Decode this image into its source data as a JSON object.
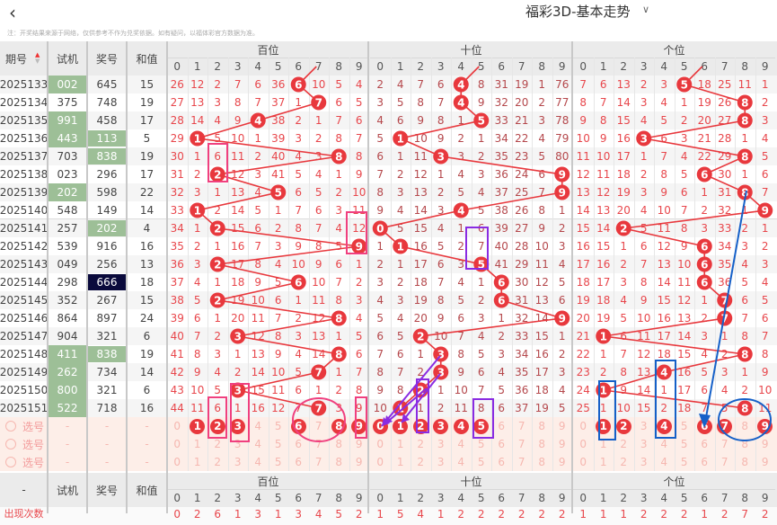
{
  "header": {
    "back_icon": "chevron-left-icon",
    "title": "福彩3D-基本走势",
    "title_chevron": "chevron-down-icon",
    "note": "注：开奖结果来源于网络，仅供参考不作为兑奖依据。如有疑问，以福体彩官方数据为准。"
  },
  "columns": {
    "period": "期号",
    "sort_icon": "sort-arrows-icon",
    "trial": "试机",
    "winning": "奖号",
    "sum": "和值",
    "positions": [
      "百位",
      "十位",
      "个位"
    ],
    "digits": [
      "0",
      "1",
      "2",
      "3",
      "4",
      "5",
      "6",
      "7",
      "8",
      "9"
    ]
  },
  "rows": [
    {
      "period": "2025133",
      "trial": "002",
      "trial_hl": true,
      "winning": "645",
      "win_hl": "",
      "sum": "15",
      "hundreds": [
        26,
        12,
        2,
        7,
        6,
        36,
        0,
        10,
        5,
        4
      ],
      "tens": [
        2,
        4,
        7,
        6,
        0,
        8,
        31,
        19,
        1,
        76
      ],
      "units": [
        7,
        6,
        13,
        2,
        3,
        0,
        18,
        25,
        11,
        1
      ]
    },
    {
      "period": "2025134",
      "trial": "375",
      "trial_hl": false,
      "winning": "748",
      "win_hl": "",
      "sum": "19",
      "hundreds": [
        27,
        13,
        3,
        8,
        7,
        37,
        1,
        0,
        6,
        5
      ],
      "tens": [
        3,
        5,
        8,
        7,
        0,
        9,
        32,
        20,
        2,
        77
      ],
      "units": [
        8,
        7,
        14,
        3,
        4,
        1,
        19,
        26,
        0,
        2
      ]
    },
    {
      "period": "2025135",
      "trial": "991",
      "trial_hl": true,
      "winning": "458",
      "win_hl": "",
      "sum": "17",
      "hundreds": [
        28,
        14,
        4,
        9,
        0,
        38,
        2,
        1,
        7,
        6
      ],
      "tens": [
        4,
        6,
        9,
        8,
        1,
        0,
        33,
        21,
        3,
        78
      ],
      "units": [
        9,
        8,
        15,
        4,
        5,
        2,
        20,
        27,
        0,
        3
      ]
    },
    {
      "period": "2025136",
      "trial": "443",
      "trial_hl": true,
      "winning": "113",
      "win_hl": "green",
      "sum": "5",
      "hundreds": [
        29,
        0,
        5,
        10,
        1,
        39,
        3,
        2,
        8,
        7
      ],
      "tens": [
        5,
        0,
        10,
        9,
        2,
        1,
        34,
        22,
        4,
        79
      ],
      "units": [
        10,
        9,
        16,
        0,
        6,
        3,
        21,
        28,
        1,
        4
      ]
    },
    {
      "period": "2025137",
      "trial": "703",
      "trial_hl": false,
      "winning": "838",
      "win_hl": "green",
      "sum": "19",
      "hundreds": [
        30,
        1,
        6,
        11,
        2,
        40,
        4,
        3,
        0,
        8
      ],
      "tens": [
        6,
        1,
        11,
        0,
        3,
        2,
        35,
        23,
        5,
        80
      ],
      "units": [
        11,
        10,
        17,
        1,
        7,
        4,
        22,
        29,
        0,
        5
      ]
    },
    {
      "period": "2025138",
      "trial": "023",
      "trial_hl": false,
      "winning": "296",
      "win_hl": "",
      "sum": "17",
      "hundreds": [
        31,
        2,
        0,
        12,
        3,
        41,
        5,
        4,
        1,
        9
      ],
      "tens": [
        7,
        2,
        12,
        1,
        4,
        3,
        36,
        24,
        6,
        0
      ],
      "units": [
        12,
        11,
        18,
        2,
        8,
        5,
        0,
        30,
        1,
        6
      ]
    },
    {
      "period": "2025139",
      "trial": "202",
      "trial_hl": true,
      "winning": "598",
      "win_hl": "",
      "sum": "22",
      "hundreds": [
        32,
        3,
        1,
        13,
        4,
        0,
        6,
        5,
        2,
        10
      ],
      "tens": [
        8,
        3,
        13,
        2,
        5,
        4,
        37,
        25,
        7,
        0
      ],
      "units": [
        13,
        12,
        19,
        3,
        9,
        6,
        1,
        31,
        0,
        7
      ]
    },
    {
      "period": "2025140",
      "trial": "548",
      "trial_hl": false,
      "winning": "149",
      "win_hl": "",
      "sum": "14",
      "hundreds": [
        33,
        0,
        2,
        14,
        5,
        1,
        7,
        6,
        3,
        11
      ],
      "tens": [
        9,
        4,
        14,
        3,
        0,
        5,
        38,
        26,
        8,
        1
      ],
      "units": [
        14,
        13,
        20,
        4,
        10,
        7,
        2,
        32,
        1,
        0
      ]
    },
    {
      "period": "2025141",
      "trial": "257",
      "trial_hl": false,
      "winning": "202",
      "win_hl": "green",
      "sum": "4",
      "hundreds": [
        34,
        1,
        0,
        15,
        6,
        2,
        8,
        7,
        4,
        12
      ],
      "tens": [
        0,
        5,
        15,
        4,
        1,
        6,
        39,
        27,
        9,
        2
      ],
      "units": [
        15,
        14,
        0,
        5,
        11,
        8,
        3,
        33,
        2,
        1
      ]
    },
    {
      "period": "2025142",
      "trial": "539",
      "trial_hl": false,
      "winning": "916",
      "win_hl": "",
      "sum": "16",
      "hundreds": [
        35,
        2,
        1,
        16,
        7,
        3,
        9,
        8,
        5,
        0
      ],
      "tens": [
        1,
        0,
        16,
        5,
        2,
        7,
        40,
        28,
        10,
        3
      ],
      "units": [
        16,
        15,
        1,
        6,
        12,
        9,
        0,
        34,
        3,
        2
      ]
    },
    {
      "period": "2025143",
      "trial": "049",
      "trial_hl": false,
      "winning": "256",
      "win_hl": "",
      "sum": "13",
      "hundreds": [
        36,
        3,
        0,
        17,
        8,
        4,
        10,
        9,
        6,
        1
      ],
      "tens": [
        2,
        1,
        17,
        6,
        3,
        0,
        41,
        29,
        11,
        4
      ],
      "units": [
        17,
        16,
        2,
        7,
        13,
        10,
        0,
        35,
        4,
        3
      ]
    },
    {
      "period": "2025144",
      "trial": "298",
      "trial_hl": false,
      "winning": "666",
      "win_hl": "navy",
      "sum": "18",
      "hundreds": [
        37,
        4,
        1,
        18,
        9,
        5,
        0,
        10,
        7,
        2
      ],
      "tens": [
        3,
        2,
        18,
        7,
        4,
        1,
        0,
        30,
        12,
        5
      ],
      "units": [
        18,
        17,
        3,
        8,
        14,
        11,
        0,
        36,
        5,
        4
      ]
    },
    {
      "period": "2025145",
      "trial": "352",
      "trial_hl": false,
      "winning": "267",
      "win_hl": "",
      "sum": "15",
      "hundreds": [
        38,
        5,
        0,
        19,
        10,
        6,
        1,
        11,
        8,
        3
      ],
      "tens": [
        4,
        3,
        19,
        8,
        5,
        2,
        0,
        31,
        13,
        6
      ],
      "units": [
        19,
        18,
        4,
        9,
        15,
        12,
        1,
        0,
        6,
        5
      ]
    },
    {
      "period": "2025146",
      "trial": "864",
      "trial_hl": false,
      "winning": "897",
      "win_hl": "",
      "sum": "24",
      "hundreds": [
        39,
        6,
        1,
        20,
        11,
        7,
        2,
        12,
        0,
        4
      ],
      "tens": [
        5,
        4,
        20,
        9,
        6,
        3,
        1,
        32,
        14,
        0
      ],
      "units": [
        20,
        19,
        5,
        10,
        16,
        13,
        2,
        0,
        7,
        6
      ]
    },
    {
      "period": "2025147",
      "trial": "904",
      "trial_hl": false,
      "winning": "321",
      "win_hl": "",
      "sum": "6",
      "hundreds": [
        40,
        7,
        2,
        0,
        12,
        8,
        3,
        13,
        1,
        5
      ],
      "tens": [
        6,
        5,
        0,
        10,
        7,
        4,
        2,
        33,
        15,
        1
      ],
      "units": [
        21,
        0,
        6,
        11,
        17,
        14,
        3,
        1,
        8,
        7
      ]
    },
    {
      "period": "2025148",
      "trial": "411",
      "trial_hl": true,
      "winning": "838",
      "win_hl": "green",
      "sum": "19",
      "hundreds": [
        41,
        8,
        3,
        1,
        13,
        9,
        4,
        14,
        0,
        6
      ],
      "tens": [
        7,
        6,
        1,
        0,
        8,
        5,
        3,
        34,
        16,
        2
      ],
      "units": [
        22,
        1,
        7,
        12,
        18,
        15,
        4,
        2,
        0,
        8
      ]
    },
    {
      "period": "2025149",
      "trial": "262",
      "trial_hl": true,
      "winning": "734",
      "win_hl": "",
      "sum": "14",
      "hundreds": [
        42,
        9,
        4,
        2,
        14,
        10,
        5,
        0,
        1,
        7
      ],
      "tens": [
        8,
        7,
        2,
        0,
        9,
        6,
        4,
        35,
        17,
        3
      ],
      "units": [
        23,
        2,
        8,
        13,
        0,
        16,
        5,
        3,
        1,
        9
      ]
    },
    {
      "period": "2025150",
      "trial": "800",
      "trial_hl": true,
      "winning": "321",
      "win_hl": "",
      "sum": "6",
      "hundreds": [
        43,
        10,
        5,
        0,
        15,
        11,
        6,
        1,
        2,
        8
      ],
      "tens": [
        9,
        8,
        0,
        1,
        10,
        7,
        5,
        36,
        18,
        4
      ],
      "units": [
        24,
        0,
        9,
        14,
        1,
        17,
        6,
        4,
        2,
        10
      ]
    },
    {
      "period": "2025151",
      "trial": "522",
      "trial_hl": true,
      "winning": "718",
      "win_hl": "",
      "sum": "16",
      "hundreds": [
        44,
        11,
        6,
        1,
        16,
        12,
        7,
        0,
        3,
        9
      ],
      "tens": [
        10,
        0,
        1,
        2,
        11,
        8,
        6,
        37,
        19,
        5
      ],
      "units": [
        25,
        1,
        10,
        15,
        2,
        18,
        7,
        5,
        0,
        11
      ]
    }
  ],
  "select_rows": [
    {
      "label": "选号",
      "dash": "-",
      "picked": {
        "hundreds": [
          1,
          2,
          3,
          6,
          8,
          9
        ],
        "tens": [
          0,
          1,
          2,
          3,
          4,
          5
        ],
        "units": [
          1,
          2,
          4,
          6,
          7,
          9
        ]
      }
    },
    {
      "label": "选号",
      "dash": "-",
      "picked": {
        "hundreds": [],
        "tens": [],
        "units": []
      }
    },
    {
      "label": "选号",
      "dash": "-",
      "picked": {
        "hundreds": [],
        "tens": [],
        "units": []
      }
    }
  ],
  "footer": {
    "dash": "-",
    "stats_label": "出现次数",
    "stats": {
      "hundreds": [
        0,
        2,
        6,
        1,
        3,
        1,
        3,
        4,
        5,
        2
      ],
      "tens": [
        1,
        5,
        4,
        1,
        2,
        2,
        2,
        2,
        2,
        2
      ],
      "units": [
        1,
        1,
        1,
        2,
        2,
        2,
        1,
        2,
        7,
        2
      ]
    }
  },
  "colors": {
    "hit": "#e8383d",
    "trial_green": "#9dbf97",
    "navy": "#0a0a3c",
    "miss_hundreds": "#e8474c",
    "miss_tens": "#b5484c",
    "miss_units": "#e8474c",
    "select_bg": "#fdeee8",
    "annot_pink": "#f0407f",
    "annot_purple": "#8a2be2",
    "annot_blue": "#1560c8"
  }
}
